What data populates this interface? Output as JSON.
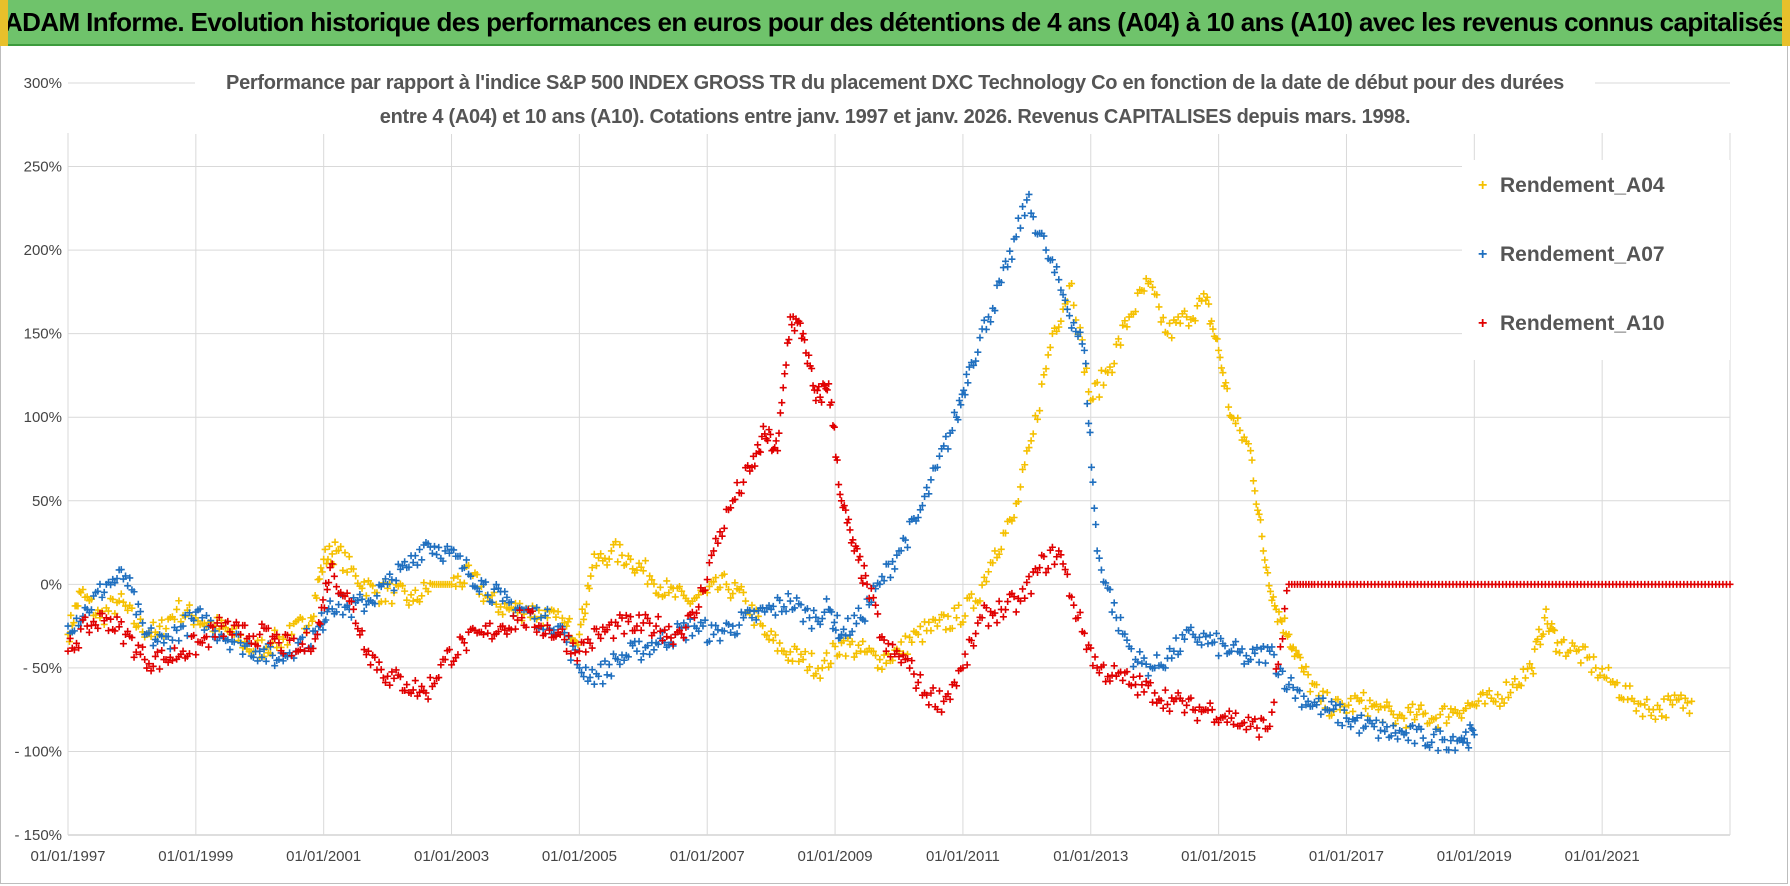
{
  "banner": {
    "title": "ADAM Informe. Evolution historique des performances en euros pour des détentions de 4 ans (A04) à 10 ans (A10) avec les revenus connus capitalisés",
    "bg_color": "#6fc36b"
  },
  "chart_data": {
    "type": "scatter",
    "title_line1": "Performance par rapport à l'indice S&P 500 INDEX GROSS TR  du placement DXC Technology Co en fonction de la date de début pour des durées",
    "title_line2": "entre 4 (A04) et 10 ans (A10). Cotations entre janv. 1997 et janv. 2026. Revenus CAPITALISES depuis mars. 1998.",
    "xlabel": "",
    "ylabel": "",
    "xlim": [
      1997.0,
      2023.0
    ],
    "ylim": [
      -150,
      300
    ],
    "y_ticks": [
      300,
      250,
      200,
      150,
      100,
      50,
      0,
      -50,
      -100,
      -150
    ],
    "y_tick_labels": [
      "300%",
      "250%",
      "200%",
      "150%",
      "100%",
      "50%",
      "0%",
      "- 50%",
      "- 100%",
      "- 150%"
    ],
    "x_ticks": [
      1997,
      1999,
      2001,
      2003,
      2005,
      2007,
      2009,
      2011,
      2013,
      2015,
      2017,
      2019,
      2021
    ],
    "x_tick_labels": [
      "01/01/1997",
      "01/01/1999",
      "01/01/2001",
      "01/01/2003",
      "01/01/2005",
      "01/01/2007",
      "01/01/2009",
      "01/01/2011",
      "01/01/2013",
      "01/01/2015",
      "01/01/2017",
      "01/01/2019",
      "01/01/2021"
    ],
    "grid": true,
    "legend_position": "top-right",
    "series": [
      {
        "name": "Rendement_A04",
        "color": "#f5c000",
        "x": [
          1997.0,
          1997.2,
          1997.5,
          1997.8,
          1998.1,
          1998.4,
          1998.7,
          1999.0,
          1999.3,
          1999.6,
          1999.9,
          2000.2,
          2000.5,
          2000.8,
          2001.0,
          2001.2,
          2001.5,
          2001.8,
          2002.1,
          2002.4,
          2002.7,
          2003.0,
          2003.3,
          2003.6,
          2003.9,
          2004.2,
          2004.5,
          2004.8,
          2005.0,
          2005.2,
          2005.5,
          2005.8,
          2006.1,
          2006.4,
          2006.7,
          2007.0,
          2007.3,
          2007.6,
          2007.9,
          2008.2,
          2008.5,
          2008.8,
          2009.1,
          2009.4,
          2009.7,
          2010.0,
          2010.3,
          2010.6,
          2010.9,
          2011.2,
          2011.5,
          2011.8,
          2012.1,
          2012.4,
          2012.7,
          2013.0,
          2013.3,
          2013.6,
          2013.9,
          2014.2,
          2014.5,
          2014.8,
          2015.0,
          2015.2,
          2015.5,
          2015.7,
          2015.9,
          2016.1,
          2016.3,
          2016.6,
          2016.9,
          2017.2,
          2017.5,
          2017.8,
          2018.1,
          2018.4,
          2018.7,
          2019.0,
          2019.3,
          2019.6,
          2019.9,
          2020.1,
          2020.3,
          2020.6,
          2020.9,
          2021.2,
          2021.5,
          2021.8,
          2022.1,
          2022.4
        ],
        "y": [
          -30,
          -5,
          -20,
          -10,
          -25,
          -30,
          -15,
          -20,
          -25,
          -30,
          -40,
          -35,
          -30,
          -20,
          15,
          20,
          5,
          -5,
          -5,
          -10,
          0,
          0,
          5,
          -10,
          -15,
          -15,
          -20,
          -25,
          -30,
          10,
          20,
          15,
          5,
          -5,
          -10,
          -5,
          0,
          -10,
          -30,
          -40,
          -45,
          -50,
          -35,
          -40,
          -45,
          -40,
          -30,
          -25,
          -20,
          -10,
          20,
          40,
          90,
          150,
          180,
          110,
          130,
          160,
          180,
          150,
          160,
          170,
          140,
          100,
          80,
          20,
          -15,
          -30,
          -50,
          -70,
          -75,
          -70,
          -75,
          -80,
          -78,
          -80,
          -75,
          -72,
          -70,
          -60,
          -50,
          -20,
          -35,
          -40,
          -50,
          -60,
          -70,
          -75,
          -72,
          -70
        ]
      },
      {
        "name": "Rendement_A07",
        "color": "#1f6fbf",
        "x": [
          1997.0,
          1997.3,
          1997.6,
          1997.9,
          1998.2,
          1998.5,
          1998.8,
          1999.1,
          1999.4,
          1999.7,
          2000.0,
          2000.3,
          2000.6,
          2000.9,
          2001.1,
          2001.4,
          2001.7,
          2002.0,
          2002.3,
          2002.6,
          2002.9,
          2003.2,
          2003.5,
          2003.8,
          2004.1,
          2004.4,
          2004.7,
          2005.0,
          2005.3,
          2005.6,
          2005.9,
          2006.2,
          2006.5,
          2006.8,
          2007.1,
          2007.4,
          2007.7,
          2008.0,
          2008.3,
          2008.6,
          2008.9,
          2009.1,
          2009.4,
          2009.7,
          2010.0,
          2010.3,
          2010.6,
          2010.9,
          2011.1,
          2011.4,
          2011.7,
          2012.0,
          2012.3,
          2012.6,
          2012.9,
          2013.1,
          2013.4,
          2013.7,
          2014.0,
          2014.3,
          2014.6,
          2014.9,
          2015.2,
          2015.5,
          2015.8,
          2016.1,
          2016.4,
          2016.7,
          2017.0,
          2017.3,
          2017.6,
          2017.9,
          2018.2,
          2018.5,
          2018.8,
          2019.0
        ],
        "y": [
          -25,
          -15,
          0,
          5,
          -30,
          -35,
          -25,
          -20,
          -30,
          -35,
          -40,
          -45,
          -35,
          -30,
          -10,
          -15,
          -10,
          0,
          10,
          25,
          20,
          10,
          0,
          -10,
          -15,
          -20,
          -25,
          -50,
          -55,
          -45,
          -40,
          -35,
          -30,
          -25,
          -30,
          -25,
          -20,
          -15,
          -10,
          -20,
          -15,
          -30,
          -20,
          0,
          20,
          40,
          70,
          100,
          130,
          160,
          190,
          230,
          200,
          170,
          140,
          20,
          -20,
          -45,
          -50,
          -40,
          -30,
          -35,
          -40,
          -45,
          -40,
          -60,
          -70,
          -75,
          -80,
          -85,
          -88,
          -90,
          -92,
          -93,
          -92,
          -90
        ]
      },
      {
        "name": "Rendement_A10",
        "color": "#e00000",
        "x": [
          1997.0,
          1997.3,
          1997.6,
          1997.9,
          1998.2,
          1998.5,
          1998.8,
          1999.1,
          1999.4,
          1999.7,
          2000.0,
          2000.3,
          2000.6,
          2000.9,
          2001.1,
          2001.4,
          2001.7,
          2002.0,
          2002.3,
          2002.6,
          2002.9,
          2003.2,
          2003.5,
          2003.8,
          2004.1,
          2004.4,
          2004.7,
          2005.0,
          2005.3,
          2005.6,
          2005.9,
          2006.2,
          2006.5,
          2006.8,
          2007.1,
          2007.4,
          2007.7,
          2007.9,
          2008.1,
          2008.3,
          2008.5,
          2008.7,
          2008.9,
          2009.1,
          2009.3,
          2009.5,
          2009.8,
          2010.1,
          2010.4,
          2010.7,
          2011.0,
          2011.3,
          2011.6,
          2011.9,
          2012.2,
          2012.5,
          2012.8,
          2013.1,
          2013.4,
          2013.7,
          2014.0,
          2014.3,
          2014.6,
          2014.9,
          2015.2,
          2015.5,
          2015.8,
          2016.1,
          2016.5,
          2017.0,
          2017.5,
          2018.0,
          2018.5,
          2019.0,
          2019.5,
          2020.0,
          2020.5,
          2021.0,
          2021.5,
          2022.0,
          2022.5,
          2023.0
        ],
        "y": [
          -40,
          -25,
          -20,
          -30,
          -45,
          -45,
          -40,
          -35,
          -25,
          -30,
          -30,
          -35,
          -40,
          -30,
          10,
          -10,
          -40,
          -55,
          -60,
          -65,
          -45,
          -35,
          -30,
          -25,
          -20,
          -25,
          -30,
          -40,
          -30,
          -25,
          -25,
          -25,
          -30,
          -20,
          20,
          50,
          70,
          90,
          80,
          160,
          150,
          110,
          120,
          50,
          20,
          0,
          -40,
          -45,
          -65,
          -70,
          -50,
          -20,
          -15,
          -10,
          10,
          20,
          -20,
          -50,
          -55,
          -60,
          -65,
          -70,
          -75,
          -75,
          -80,
          -85,
          -85,
          0,
          0,
          0,
          0,
          0,
          0,
          0,
          0,
          0,
          0,
          0,
          0,
          0,
          0,
          0
        ]
      }
    ]
  }
}
